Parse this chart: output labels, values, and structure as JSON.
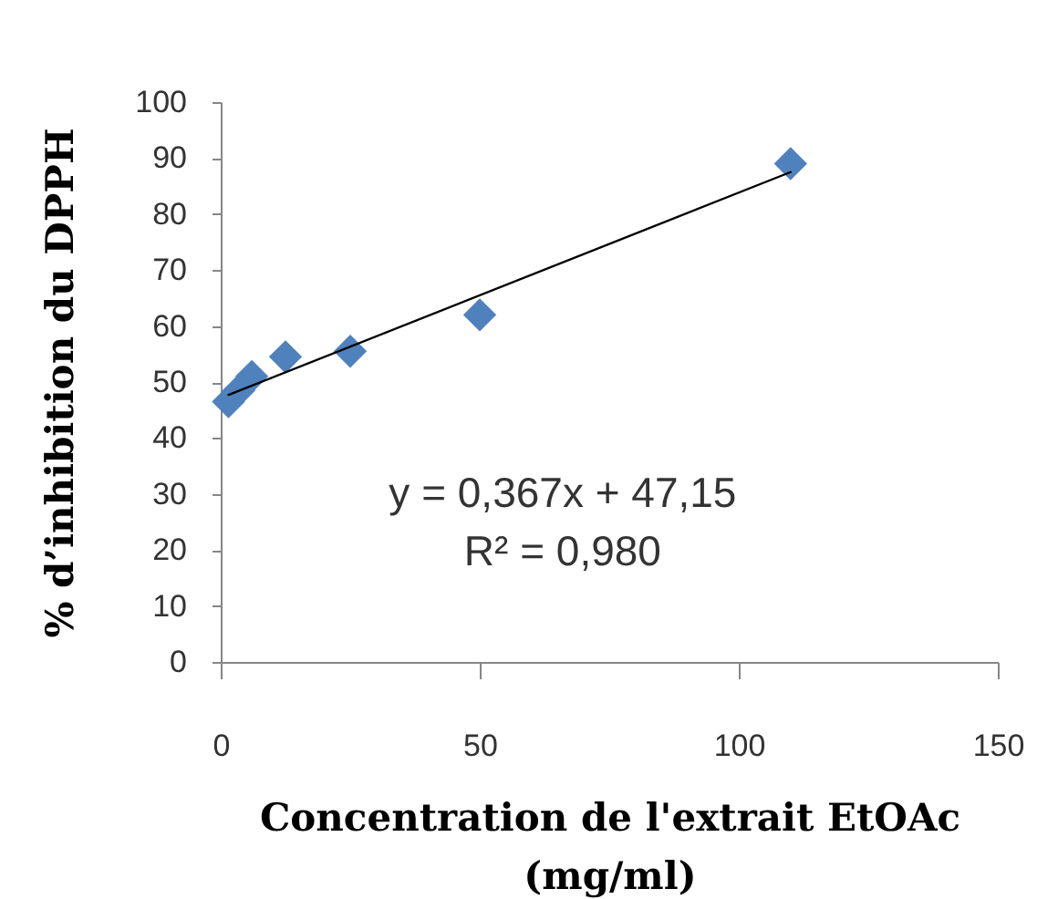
{
  "chart_data": {
    "type": "scatter",
    "xlabel": "Concentration de l'extrait EtOAc (mg/ml)",
    "ylabel": "% d’inhibition du DPPH",
    "annotations": [
      "y = 0,367x + 47,15",
      "R² = 0,980"
    ],
    "xlim": [
      0,
      150
    ],
    "xticks": [
      0,
      50,
      100,
      150
    ],
    "ylim": [
      0,
      100
    ],
    "yticks": [
      0,
      10,
      20,
      30,
      40,
      50,
      60,
      70,
      80,
      90,
      100
    ],
    "grid": false,
    "series": [
      {
        "marker": "diamond",
        "color": "#4f81bd",
        "x": [
          1.5,
          3.5,
          6,
          12.5,
          25,
          50,
          110
        ],
        "values": [
          46.5,
          48.5,
          51,
          54.5,
          55.5,
          62,
          89
        ]
      },
      {
        "type": "line",
        "color": "#000000",
        "x": [
          1.5,
          110
        ],
        "values": [
          47.7,
          87.5
        ]
      }
    ]
  }
}
